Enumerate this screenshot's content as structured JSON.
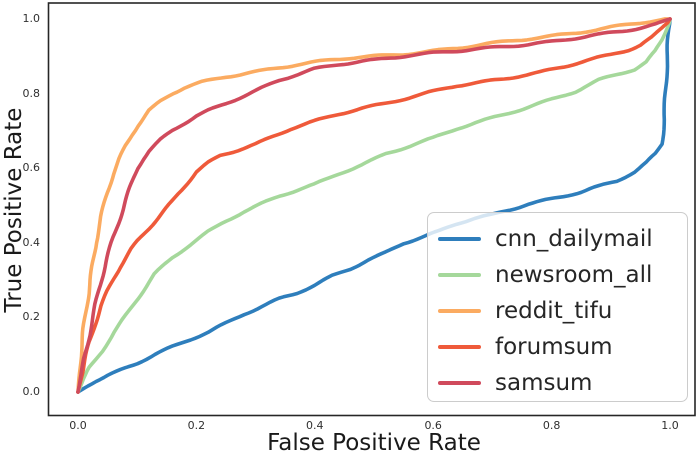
{
  "chart_data": {
    "type": "line",
    "title": "",
    "xlabel": "False Positive Rate",
    "ylabel": "True Positive Rate",
    "xlim": [
      0.0,
      1.0
    ],
    "ylim": [
      0.0,
      1.0
    ],
    "grid": false,
    "legend_position": "lower right",
    "axis_color": "#262626",
    "x_ticks": [
      {
        "value": 0.0,
        "label": "0.0"
      },
      {
        "value": 0.2,
        "label": "0.2"
      },
      {
        "value": 0.4,
        "label": "0.4"
      },
      {
        "value": 0.6,
        "label": "0.6"
      },
      {
        "value": 0.8,
        "label": "0.8"
      },
      {
        "value": 1.0,
        "label": "1.0"
      }
    ],
    "y_ticks": [
      {
        "value": 0.0,
        "label": "0.0"
      },
      {
        "value": 0.2,
        "label": "0.2"
      },
      {
        "value": 0.4,
        "label": "0.4"
      },
      {
        "value": 0.6,
        "label": "0.6"
      },
      {
        "value": 0.8,
        "label": "0.8"
      },
      {
        "value": 1.0,
        "label": "1.0"
      }
    ],
    "series": [
      {
        "name": "cnn_dailymail",
        "color": "#2e7ebc",
        "points": [
          [
            0,
            0
          ],
          [
            0.01,
            0.01
          ],
          [
            0.03,
            0.03
          ],
          [
            0.05,
            0.045
          ],
          [
            0.08,
            0.065
          ],
          [
            0.1,
            0.078
          ],
          [
            0.13,
            0.1
          ],
          [
            0.16,
            0.12
          ],
          [
            0.19,
            0.14
          ],
          [
            0.22,
            0.16
          ],
          [
            0.25,
            0.185
          ],
          [
            0.28,
            0.21
          ],
          [
            0.31,
            0.23
          ],
          [
            0.34,
            0.25
          ],
          [
            0.37,
            0.265
          ],
          [
            0.4,
            0.285
          ],
          [
            0.43,
            0.31
          ],
          [
            0.46,
            0.33
          ],
          [
            0.49,
            0.355
          ],
          [
            0.52,
            0.375
          ],
          [
            0.55,
            0.4
          ],
          [
            0.58,
            0.415
          ],
          [
            0.61,
            0.43
          ],
          [
            0.64,
            0.45
          ],
          [
            0.67,
            0.465
          ],
          [
            0.7,
            0.475
          ],
          [
            0.73,
            0.49
          ],
          [
            0.76,
            0.505
          ],
          [
            0.79,
            0.515
          ],
          [
            0.82,
            0.525
          ],
          [
            0.85,
            0.535
          ],
          [
            0.88,
            0.55
          ],
          [
            0.91,
            0.565
          ],
          [
            0.94,
            0.59
          ],
          [
            0.96,
            0.615
          ],
          [
            0.975,
            0.64
          ],
          [
            0.985,
            0.665
          ],
          [
            0.99,
            0.73
          ],
          [
            0.994,
            0.83
          ],
          [
            0.997,
            0.93
          ],
          [
            1.0,
            1.0
          ]
        ]
      },
      {
        "name": "newsroom_all",
        "color": "#a5d89b",
        "points": [
          [
            0,
            0
          ],
          [
            0.01,
            0.035
          ],
          [
            0.02,
            0.065
          ],
          [
            0.04,
            0.11
          ],
          [
            0.06,
            0.16
          ],
          [
            0.08,
            0.205
          ],
          [
            0.1,
            0.25
          ],
          [
            0.13,
            0.315
          ],
          [
            0.16,
            0.36
          ],
          [
            0.19,
            0.395
          ],
          [
            0.22,
            0.43
          ],
          [
            0.25,
            0.46
          ],
          [
            0.28,
            0.485
          ],
          [
            0.31,
            0.505
          ],
          [
            0.34,
            0.525
          ],
          [
            0.37,
            0.54
          ],
          [
            0.4,
            0.555
          ],
          [
            0.44,
            0.585
          ],
          [
            0.48,
            0.61
          ],
          [
            0.52,
            0.64
          ],
          [
            0.56,
            0.66
          ],
          [
            0.6,
            0.68
          ],
          [
            0.64,
            0.705
          ],
          [
            0.68,
            0.725
          ],
          [
            0.72,
            0.745
          ],
          [
            0.76,
            0.765
          ],
          [
            0.8,
            0.785
          ],
          [
            0.84,
            0.805
          ],
          [
            0.88,
            0.835
          ],
          [
            0.91,
            0.85
          ],
          [
            0.94,
            0.865
          ],
          [
            0.96,
            0.885
          ],
          [
            0.975,
            0.915
          ],
          [
            0.985,
            0.945
          ],
          [
            0.993,
            0.975
          ],
          [
            1.0,
            1.0
          ]
        ]
      },
      {
        "name": "reddit_tifu",
        "color": "#fbab61",
        "points": [
          [
            0,
            0
          ],
          [
            0.003,
            0.05
          ],
          [
            0.006,
            0.11
          ],
          [
            0.01,
            0.17
          ],
          [
            0.015,
            0.24
          ],
          [
            0.02,
            0.3
          ],
          [
            0.03,
            0.4
          ],
          [
            0.04,
            0.47
          ],
          [
            0.05,
            0.535
          ],
          [
            0.06,
            0.585
          ],
          [
            0.07,
            0.625
          ],
          [
            0.08,
            0.66
          ],
          [
            0.09,
            0.69
          ],
          [
            0.1,
            0.715
          ],
          [
            0.11,
            0.735
          ],
          [
            0.12,
            0.755
          ],
          [
            0.14,
            0.78
          ],
          [
            0.16,
            0.8
          ],
          [
            0.18,
            0.815
          ],
          [
            0.21,
            0.83
          ],
          [
            0.25,
            0.845
          ],
          [
            0.29,
            0.857
          ],
          [
            0.33,
            0.868
          ],
          [
            0.37,
            0.878
          ],
          [
            0.41,
            0.886
          ],
          [
            0.45,
            0.893
          ],
          [
            0.5,
            0.9
          ],
          [
            0.55,
            0.907
          ],
          [
            0.6,
            0.915
          ],
          [
            0.65,
            0.924
          ],
          [
            0.7,
            0.934
          ],
          [
            0.75,
            0.944
          ],
          [
            0.8,
            0.955
          ],
          [
            0.85,
            0.966
          ],
          [
            0.9,
            0.978
          ],
          [
            0.95,
            0.989
          ],
          [
            1.0,
            1.0
          ]
        ]
      },
      {
        "name": "forumsum",
        "color": "#ef5a3a",
        "points": [
          [
            0,
            0
          ],
          [
            0.005,
            0.04
          ],
          [
            0.01,
            0.075
          ],
          [
            0.02,
            0.135
          ],
          [
            0.03,
            0.185
          ],
          [
            0.04,
            0.23
          ],
          [
            0.05,
            0.27
          ],
          [
            0.06,
            0.305
          ],
          [
            0.07,
            0.335
          ],
          [
            0.08,
            0.36
          ],
          [
            0.09,
            0.385
          ],
          [
            0.1,
            0.405
          ],
          [
            0.12,
            0.44
          ],
          [
            0.14,
            0.475
          ],
          [
            0.16,
            0.51
          ],
          [
            0.18,
            0.55
          ],
          [
            0.2,
            0.59
          ],
          [
            0.22,
            0.615
          ],
          [
            0.24,
            0.635
          ],
          [
            0.27,
            0.65
          ],
          [
            0.3,
            0.665
          ],
          [
            0.33,
            0.685
          ],
          [
            0.36,
            0.705
          ],
          [
            0.4,
            0.725
          ],
          [
            0.44,
            0.745
          ],
          [
            0.48,
            0.762
          ],
          [
            0.52,
            0.775
          ],
          [
            0.56,
            0.79
          ],
          [
            0.6,
            0.805
          ],
          [
            0.64,
            0.82
          ],
          [
            0.68,
            0.83
          ],
          [
            0.72,
            0.84
          ],
          [
            0.75,
            0.85
          ],
          [
            0.78,
            0.858
          ],
          [
            0.82,
            0.872
          ],
          [
            0.86,
            0.888
          ],
          [
            0.9,
            0.903
          ],
          [
            0.93,
            0.917
          ],
          [
            0.95,
            0.93
          ],
          [
            0.97,
            0.952
          ],
          [
            0.985,
            0.975
          ],
          [
            1.0,
            1.0
          ]
        ]
      },
      {
        "name": "samsum",
        "color": "#d04a5c",
        "points": [
          [
            0,
            0
          ],
          [
            0.005,
            0.045
          ],
          [
            0.01,
            0.09
          ],
          [
            0.02,
            0.165
          ],
          [
            0.03,
            0.235
          ],
          [
            0.04,
            0.3
          ],
          [
            0.05,
            0.36
          ],
          [
            0.06,
            0.415
          ],
          [
            0.07,
            0.465
          ],
          [
            0.08,
            0.515
          ],
          [
            0.09,
            0.56
          ],
          [
            0.1,
            0.6
          ],
          [
            0.11,
            0.625
          ],
          [
            0.12,
            0.645
          ],
          [
            0.14,
            0.675
          ],
          [
            0.16,
            0.7
          ],
          [
            0.18,
            0.72
          ],
          [
            0.2,
            0.74
          ],
          [
            0.22,
            0.755
          ],
          [
            0.25,
            0.775
          ],
          [
            0.28,
            0.795
          ],
          [
            0.31,
            0.815
          ],
          [
            0.34,
            0.835
          ],
          [
            0.37,
            0.85
          ],
          [
            0.4,
            0.865
          ],
          [
            0.44,
            0.878
          ],
          [
            0.48,
            0.888
          ],
          [
            0.52,
            0.895
          ],
          [
            0.56,
            0.903
          ],
          [
            0.6,
            0.908
          ],
          [
            0.64,
            0.913
          ],
          [
            0.68,
            0.92
          ],
          [
            0.72,
            0.927
          ],
          [
            0.76,
            0.933
          ],
          [
            0.8,
            0.94
          ],
          [
            0.84,
            0.948
          ],
          [
            0.88,
            0.957
          ],
          [
            0.92,
            0.967
          ],
          [
            0.95,
            0.976
          ],
          [
            0.975,
            0.986
          ],
          [
            1.0,
            1.0
          ]
        ]
      }
    ]
  }
}
